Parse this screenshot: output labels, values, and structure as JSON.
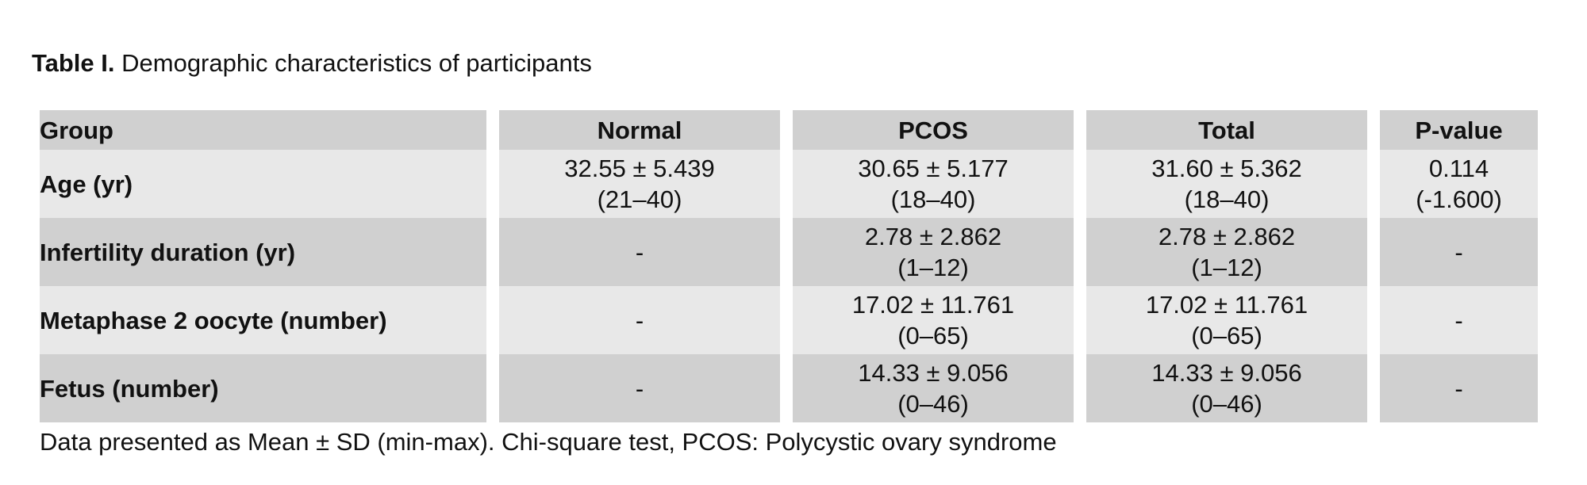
{
  "caption": {
    "label": "Table I.",
    "text": " Demographic characteristics of participants"
  },
  "table": {
    "headers": [
      "Group",
      "Normal",
      "PCOS",
      "Total",
      "P-value"
    ],
    "rows": [
      {
        "label": "Age (yr)",
        "cells": [
          [
            "32.55 ± 5.439",
            "(21–40)"
          ],
          [
            "30.65 ± 5.177",
            "(18–40)"
          ],
          [
            "31.60 ± 5.362",
            "(18–40)"
          ],
          [
            "0.114",
            "(-1.600)"
          ]
        ]
      },
      {
        "label": "Infertility duration (yr)",
        "cells": [
          [
            "-"
          ],
          [
            "2.78 ± 2.862",
            "(1–12)"
          ],
          [
            "2.78 ± 2.862",
            "(1–12)"
          ],
          [
            "-"
          ]
        ]
      },
      {
        "label": "Metaphase 2 oocyte (number)",
        "cells": [
          [
            "-"
          ],
          [
            "17.02 ± 11.761",
            "(0–65)"
          ],
          [
            "17.02 ± 11.761",
            "(0–65)"
          ],
          [
            "-"
          ]
        ]
      },
      {
        "label": "Fetus (number)",
        "cells": [
          [
            "-"
          ],
          [
            "14.33 ± 9.056",
            "(0–46)"
          ],
          [
            "14.33 ± 9.056",
            "(0–46)"
          ],
          [
            "-"
          ]
        ]
      }
    ]
  },
  "footnote": "Data presented as Mean ± SD (min-max). Chi-square test, PCOS: Polycystic ovary syndrome"
}
